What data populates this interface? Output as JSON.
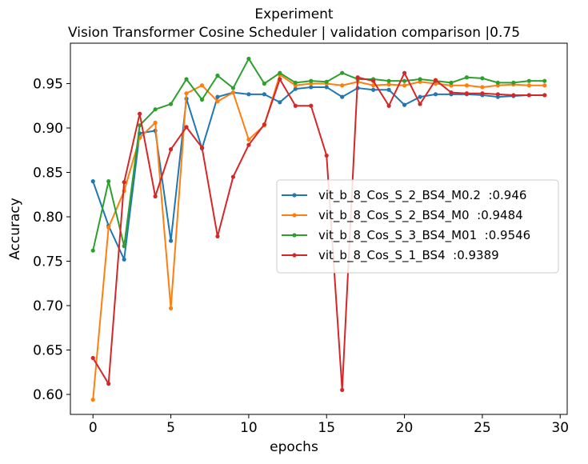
{
  "chart_data": {
    "type": "line",
    "title": "Experiment",
    "subtitle": "Vision Transformer Cosine Scheduler | validation comparison |0.75",
    "xlabel": "epochs",
    "ylabel": "Accuracy",
    "xlim": [
      -1.45,
      30.45
    ],
    "ylim": [
      0.5775,
      0.9955
    ],
    "xticks": [
      0,
      5,
      10,
      15,
      20,
      25,
      30
    ],
    "xtick_labels": [
      "0",
      "5",
      "10",
      "15",
      "20",
      "25",
      "30"
    ],
    "yticks": [
      0.6,
      0.65,
      0.7,
      0.75,
      0.8,
      0.85,
      0.9,
      0.95
    ],
    "ytick_labels": [
      "0.60",
      "0.65",
      "0.70",
      "0.75",
      "0.80",
      "0.85",
      "0.90",
      "0.95"
    ],
    "grid": false,
    "legend_position": "center-right",
    "x": [
      0,
      1,
      2,
      3,
      4,
      5,
      6,
      7,
      8,
      9,
      10,
      11,
      12,
      13,
      14,
      15,
      16,
      17,
      18,
      19,
      20,
      21,
      22,
      23,
      24,
      25,
      26,
      27,
      28,
      29
    ],
    "series": [
      {
        "name": "vit_b_8_Cos_S_2_BS4_M0.2  :0.946",
        "color": "#1f77b4",
        "values": [
          0.84,
          0.79,
          0.752,
          0.894,
          0.897,
          0.773,
          0.933,
          0.877,
          0.935,
          0.94,
          0.938,
          0.938,
          0.929,
          0.944,
          0.946,
          0.946,
          0.935,
          0.945,
          0.943,
          0.943,
          0.926,
          0.935,
          0.938,
          0.938,
          0.938,
          0.937,
          0.935,
          0.936,
          0.937,
          0.937
        ]
      },
      {
        "name": "vit_b_8_Cos_S_2_BS4_M0  :0.9484",
        "color": "#ff7f0e",
        "values": [
          0.594,
          0.788,
          0.829,
          0.889,
          0.906,
          0.697,
          0.939,
          0.948,
          0.93,
          0.94,
          0.887,
          0.903,
          0.96,
          0.948,
          0.95,
          0.95,
          0.948,
          0.952,
          0.948,
          0.949,
          0.948,
          0.952,
          0.95,
          0.948,
          0.948,
          0.946,
          0.948,
          0.949,
          0.948,
          0.948
        ]
      },
      {
        "name": "vit_b_8_Cos_S_3_BS4_M01  :0.9546",
        "color": "#2ca02c",
        "values": [
          0.762,
          0.84,
          0.767,
          0.903,
          0.921,
          0.927,
          0.955,
          0.932,
          0.959,
          0.945,
          0.978,
          0.95,
          0.962,
          0.951,
          0.953,
          0.952,
          0.962,
          0.955,
          0.955,
          0.953,
          0.953,
          0.955,
          0.953,
          0.951,
          0.957,
          0.956,
          0.951,
          0.951,
          0.953,
          0.953
        ]
      },
      {
        "name": "vit_b_8_Cos_S_1_BS4  :0.9389",
        "color": "#d62728",
        "values": [
          0.641,
          0.612,
          0.839,
          0.916,
          0.823,
          0.876,
          0.901,
          0.878,
          0.778,
          0.845,
          0.881,
          0.904,
          0.955,
          0.925,
          0.925,
          0.869,
          0.605,
          0.957,
          0.953,
          0.925,
          0.962,
          0.927,
          0.954,
          0.94,
          0.939,
          0.939,
          0.938,
          0.937,
          0.937,
          0.937
        ]
      }
    ]
  }
}
